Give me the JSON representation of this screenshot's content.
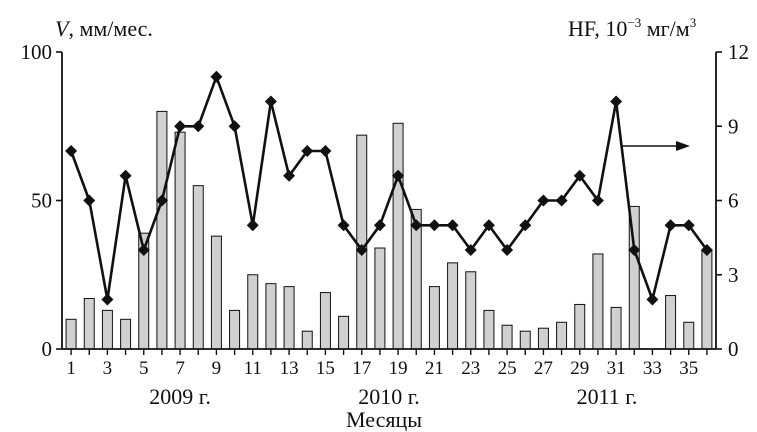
{
  "chart_data": {
    "type": "bar+line",
    "left_axis": {
      "label_var": "V",
      "label_rest": ", мм/мес.",
      "ylim": [
        0,
        100
      ],
      "ticks": [
        0,
        50,
        100
      ]
    },
    "right_axis": {
      "label_main": "HF, 10",
      "label_exp": "−3",
      "label_unit": " мг/м",
      "label_unit_exp": "3",
      "ylim": [
        0,
        12
      ],
      "ticks": [
        0,
        3,
        6,
        9,
        12
      ]
    },
    "x": {
      "months": [
        1,
        2,
        3,
        4,
        5,
        6,
        7,
        8,
        9,
        10,
        11,
        12,
        13,
        14,
        15,
        16,
        17,
        18,
        19,
        20,
        21,
        22,
        23,
        24,
        25,
        26,
        27,
        28,
        29,
        30,
        31,
        32,
        33,
        34,
        35,
        36
      ],
      "tick_labels": [
        "1",
        "3",
        "5",
        "7",
        "9",
        "11",
        "13",
        "15",
        "17",
        "19",
        "21",
        "23",
        "25",
        "27",
        "29",
        "31",
        "33",
        "35"
      ],
      "tick_label_months": [
        1,
        3,
        5,
        7,
        9,
        11,
        13,
        15,
        17,
        19,
        21,
        23,
        25,
        27,
        29,
        31,
        33,
        35
      ],
      "xlabel": "Месяцы",
      "years": [
        {
          "label": "2009 г.",
          "month": 7
        },
        {
          "label": "2010 г.",
          "month": 18.5
        },
        {
          "label": "2011 г.",
          "month": 30.5
        }
      ]
    },
    "series": [
      {
        "type": "bar",
        "axis": "left",
        "color": "#d0d0d0",
        "values": [
          10,
          17,
          13,
          10,
          39,
          80,
          73,
          55,
          38,
          13,
          25,
          22,
          21,
          6,
          19,
          11,
          72,
          34,
          76,
          47,
          21,
          29,
          26,
          13,
          8,
          6,
          7,
          9,
          15,
          32,
          14,
          48,
          0,
          18,
          9,
          33
        ]
      },
      {
        "type": "line",
        "axis": "right",
        "color": "#111111",
        "marker": "diamond",
        "values": [
          8,
          6,
          2,
          7,
          4,
          6,
          9,
          9,
          11,
          9,
          5,
          10,
          7,
          8,
          8,
          5,
          4,
          5,
          7,
          5,
          5,
          5,
          4,
          5,
          4,
          5,
          6,
          6,
          7,
          6,
          10,
          4,
          2,
          5,
          5,
          4
        ]
      }
    ]
  }
}
